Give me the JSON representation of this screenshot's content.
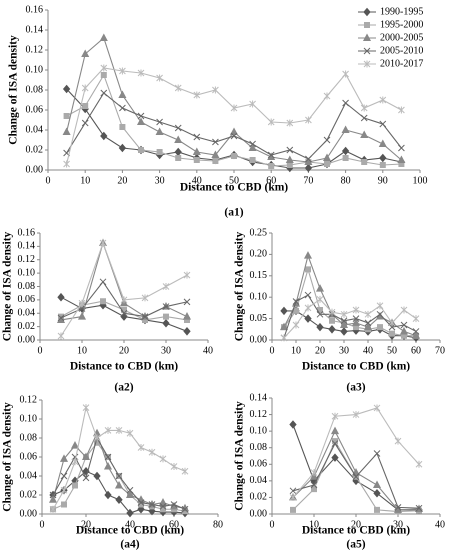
{
  "chart_data": [
    {
      "type": "line",
      "caption": "(a1)",
      "x_label": "Distance to CBD (km)",
      "y_label": "Change of ISA density",
      "legend": "upper right",
      "x": [
        5,
        10,
        15,
        20,
        25,
        30,
        35,
        40,
        45,
        50,
        55,
        60,
        65,
        70,
        75,
        80,
        85,
        90,
        95
      ],
      "xlim": [
        0,
        100
      ],
      "xticks": [
        0,
        10,
        20,
        30,
        40,
        50,
        60,
        70,
        80,
        90,
        100
      ],
      "ylim": [
        0,
        0.16
      ],
      "yticks": [
        {
          "value": 0,
          "label": "0.00"
        },
        {
          "value": 0.02,
          "label": "0.02"
        },
        {
          "value": 0.04,
          "label": "0.04"
        },
        {
          "value": 0.06,
          "label": "0.06"
        },
        {
          "value": 0.08,
          "label": "0.08"
        },
        {
          "value": 0.1,
          "label": "0.10"
        },
        {
          "value": 0.12,
          "label": "0.12"
        },
        {
          "value": 0.14,
          "label": "0.14"
        },
        {
          "value": 0.16,
          "label": "0.16"
        }
      ],
      "series": [
        {
          "name": "1990-1995",
          "color": "#555555",
          "marker": "diamond",
          "values": [
            0.081,
            0.061,
            0.034,
            0.022,
            0.02,
            0.015,
            0.018,
            0.012,
            0.01,
            0.015,
            0.008,
            0.005,
            0.002,
            0.002,
            0.006,
            0.019,
            0.01,
            0.012,
            0.008
          ]
        },
        {
          "name": "1995-2000",
          "color": "#aaaaaa",
          "marker": "square",
          "values": [
            0.054,
            0.064,
            0.095,
            0.043,
            0.02,
            0.018,
            0.012,
            0.01,
            0.009,
            0.014,
            0.01,
            0.004,
            0.005,
            0.008,
            0.006,
            0.012,
            0.008,
            0.005,
            0.006
          ]
        },
        {
          "name": "2000-2005",
          "color": "#888888",
          "marker": "triangle",
          "values": [
            0.038,
            0.116,
            0.132,
            0.075,
            0.048,
            0.038,
            0.03,
            0.018,
            0.015,
            0.038,
            0.022,
            0.013,
            0.01,
            0.008,
            0.012,
            0.04,
            0.035,
            0.026,
            0.01
          ]
        },
        {
          "name": "2005-2010",
          "color": "#666666",
          "marker": "cross",
          "values": [
            0.017,
            0.047,
            0.077,
            0.062,
            0.054,
            0.048,
            0.042,
            0.033,
            0.028,
            0.034,
            0.026,
            0.015,
            0.02,
            0.011,
            0.03,
            0.067,
            0.052,
            0.046,
            0.022
          ]
        },
        {
          "name": "2010-2017",
          "color": "#bbbbbb",
          "marker": "star",
          "values": [
            0.006,
            0.082,
            0.102,
            0.099,
            0.097,
            0.092,
            0.082,
            0.075,
            0.08,
            0.062,
            0.066,
            0.048,
            0.047,
            0.05,
            0.074,
            0.096,
            0.062,
            0.07,
            0.06
          ]
        }
      ]
    },
    {
      "type": "line",
      "caption": "(a2)",
      "x_label": "Distance to CBD (km)",
      "y_label": "Change of ISA density",
      "x": [
        5,
        10,
        15,
        20,
        25,
        30,
        35
      ],
      "xlim": [
        0,
        40
      ],
      "xticks": [
        0,
        10,
        20,
        30,
        40
      ],
      "ylim": [
        0,
        0.16
      ],
      "yticks": [
        {
          "value": 0,
          "label": "0.00"
        },
        {
          "value": 0.02,
          "label": "0.02"
        },
        {
          "value": 0.04,
          "label": "0.04"
        },
        {
          "value": 0.06,
          "label": "0.06"
        },
        {
          "value": 0.08,
          "label": "0.08"
        },
        {
          "value": 0.1,
          "label": "0.10"
        },
        {
          "value": 0.12,
          "label": "0.12"
        },
        {
          "value": 0.14,
          "label": "0.14"
        },
        {
          "value": 0.16,
          "label": "0.16"
        }
      ],
      "series": [
        {
          "color": "#555555",
          "marker": "diamond",
          "values": [
            0.064,
            0.047,
            0.052,
            0.035,
            0.03,
            0.025,
            0.013
          ]
        },
        {
          "color": "#aaaaaa",
          "marker": "square",
          "values": [
            0.035,
            0.052,
            0.058,
            0.045,
            0.03,
            0.035,
            0.03
          ]
        },
        {
          "color": "#888888",
          "marker": "triangle",
          "values": [
            0.03,
            0.035,
            0.145,
            0.055,
            0.035,
            0.05,
            0.035
          ]
        },
        {
          "color": "#666666",
          "marker": "cross",
          "values": [
            0.033,
            0.047,
            0.087,
            0.04,
            0.035,
            0.05,
            0.057
          ]
        },
        {
          "color": "#bbbbbb",
          "marker": "star",
          "values": [
            0.006,
            0.055,
            0.145,
            0.06,
            0.063,
            0.08,
            0.097
          ]
        }
      ]
    },
    {
      "type": "line",
      "caption": "(a3)",
      "x_label": "Distance to CBD (km)",
      "y_label": "Change of ISA density",
      "x": [
        5,
        10,
        15,
        20,
        25,
        30,
        35,
        40,
        45,
        50,
        55,
        60
      ],
      "xlim": [
        0,
        70
      ],
      "xticks": [
        0,
        10,
        20,
        30,
        40,
        50,
        60,
        70
      ],
      "ylim": [
        0,
        0.25
      ],
      "yticks": [
        {
          "value": 0,
          "label": "0.00"
        },
        {
          "value": 0.05,
          "label": "0.05"
        },
        {
          "value": 0.1,
          "label": "0.10"
        },
        {
          "value": 0.15,
          "label": "0.15"
        },
        {
          "value": 0.2,
          "label": "0.20"
        },
        {
          "value": 0.25,
          "label": "0.25"
        }
      ],
      "series": [
        {
          "color": "#555555",
          "marker": "diamond",
          "values": [
            0.068,
            0.068,
            0.05,
            0.03,
            0.025,
            0.02,
            0.022,
            0.02,
            0.025,
            0.01,
            0.01,
            0.005
          ]
        },
        {
          "color": "#aaaaaa",
          "marker": "square",
          "values": [
            0.03,
            0.068,
            0.165,
            0.07,
            0.045,
            0.04,
            0.03,
            0.025,
            0.03,
            0.015,
            0.01,
            0.01
          ]
        },
        {
          "color": "#888888",
          "marker": "triangle",
          "values": [
            0.03,
            0.085,
            0.197,
            0.12,
            0.06,
            0.035,
            0.04,
            0.03,
            0.055,
            0.04,
            0.02,
            0.01
          ]
        },
        {
          "color": "#666666",
          "marker": "cross",
          "values": [
            0.005,
            0.09,
            0.105,
            0.06,
            0.06,
            0.045,
            0.05,
            0.04,
            0.06,
            0.03,
            0.035,
            0.02
          ]
        },
        {
          "color": "#bbbbbb",
          "marker": "star",
          "values": [
            0.005,
            0.035,
            0.075,
            0.095,
            0.065,
            0.06,
            0.07,
            0.06,
            0.08,
            0.04,
            0.07,
            0.05
          ]
        }
      ]
    },
    {
      "type": "line",
      "caption": "(a4)",
      "x_label": "Distance to CBD (km)",
      "y_label": "Change of ISA density",
      "x": [
        5,
        10,
        15,
        20,
        25,
        30,
        35,
        40,
        45,
        50,
        55,
        60,
        65
      ],
      "xlim": [
        0,
        80
      ],
      "xticks": [
        0,
        20,
        40,
        60,
        80
      ],
      "ylim": [
        0,
        0.12
      ],
      "yticks": [
        {
          "value": 0,
          "label": "0.00"
        },
        {
          "value": 0.02,
          "label": "0.02"
        },
        {
          "value": 0.04,
          "label": "0.04"
        },
        {
          "value": 0.06,
          "label": "0.06"
        },
        {
          "value": 0.08,
          "label": "0.08"
        },
        {
          "value": 0.1,
          "label": "0.10"
        },
        {
          "value": 0.12,
          "label": "0.12"
        }
      ],
      "series": [
        {
          "color": "#555555",
          "marker": "diamond",
          "values": [
            0.02,
            0.025,
            0.035,
            0.045,
            0.04,
            0.02,
            0.015,
            0.001,
            0.005,
            0.003,
            0.002,
            0.002,
            0.001
          ]
        },
        {
          "color": "#aaaaaa",
          "marker": "square",
          "values": [
            0.005,
            0.01,
            0.03,
            0.06,
            0.075,
            0.06,
            0.04,
            0.02,
            0.01,
            0.008,
            0.005,
            0.005,
            0.003
          ]
        },
        {
          "color": "#888888",
          "marker": "triangle",
          "values": [
            0.015,
            0.058,
            0.072,
            0.06,
            0.085,
            0.05,
            0.03,
            0.02,
            0.015,
            0.01,
            0.012,
            0.008,
            0.006
          ]
        },
        {
          "color": "#666666",
          "marker": "cross",
          "values": [
            0.02,
            0.04,
            0.06,
            0.038,
            0.08,
            0.06,
            0.04,
            0.025,
            0.012,
            0.01,
            0.008,
            0.01,
            0.005
          ]
        },
        {
          "color": "#bbbbbb",
          "marker": "star",
          "values": [
            0.005,
            0.025,
            0.055,
            0.112,
            0.08,
            0.088,
            0.088,
            0.085,
            0.07,
            0.065,
            0.058,
            0.05,
            0.045
          ]
        }
      ]
    },
    {
      "type": "line",
      "caption": "(a5)",
      "x_label": "Distance to CBD (km)",
      "y_label": "Change of ISA density",
      "x": [
        5,
        10,
        15,
        20,
        25,
        30,
        35
      ],
      "xlim": [
        0,
        40
      ],
      "xticks": [
        0,
        10,
        20,
        30,
        40
      ],
      "ylim": [
        0,
        0.14
      ],
      "yticks": [
        {
          "value": 0,
          "label": "0.00"
        },
        {
          "value": 0.02,
          "label": "0.02"
        },
        {
          "value": 0.04,
          "label": "0.04"
        },
        {
          "value": 0.06,
          "label": "0.06"
        },
        {
          "value": 0.08,
          "label": "0.08"
        },
        {
          "value": 0.1,
          "label": "0.10"
        },
        {
          "value": 0.12,
          "label": "0.12"
        },
        {
          "value": 0.14,
          "label": "0.14"
        }
      ],
      "series": [
        {
          "color": "#555555",
          "marker": "diamond",
          "values": [
            0.108,
            0.04,
            0.068,
            0.04,
            0.025,
            0.005,
            0.005
          ]
        },
        {
          "color": "#aaaaaa",
          "marker": "square",
          "values": [
            0.005,
            0.03,
            0.088,
            0.045,
            0.005,
            0.003,
            0.004
          ]
        },
        {
          "color": "#888888",
          "marker": "triangle",
          "values": [
            0.02,
            0.045,
            0.1,
            0.05,
            0.035,
            0.005,
            0.006
          ]
        },
        {
          "color": "#666666",
          "marker": "cross",
          "values": [
            0.028,
            0.035,
            0.085,
            0.045,
            0.073,
            0.008,
            0.007
          ]
        },
        {
          "color": "#bbbbbb",
          "marker": "star",
          "values": [
            0.02,
            0.05,
            0.118,
            0.12,
            0.128,
            0.088,
            0.06
          ]
        }
      ]
    }
  ]
}
